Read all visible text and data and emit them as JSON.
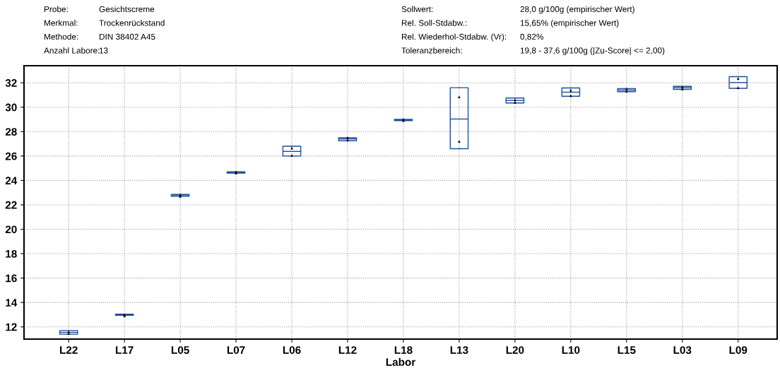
{
  "chart_data": {
    "type": "box",
    "xlabel": "Labor",
    "categories": [
      "L22",
      "L17",
      "L05",
      "L07",
      "L06",
      "L12",
      "L18",
      "L13",
      "L20",
      "L10",
      "L15",
      "L03",
      "L09"
    ],
    "boxes": [
      {
        "low": 11.4,
        "q1": 11.4,
        "median": 11.55,
        "q3": 11.7,
        "high": 11.7
      },
      {
        "low": 12.95,
        "q1": 12.95,
        "median": 13.0,
        "q3": 13.05,
        "high": 13.05
      },
      {
        "low": 22.7,
        "q1": 22.7,
        "median": 22.75,
        "q3": 22.85,
        "high": 22.85
      },
      {
        "low": 24.6,
        "q1": 24.6,
        "median": 24.65,
        "q3": 24.7,
        "high": 24.7
      },
      {
        "low": 26.0,
        "q1": 26.0,
        "median": 26.38,
        "q3": 26.8,
        "high": 26.8
      },
      {
        "low": 27.25,
        "q1": 27.25,
        "median": 27.4,
        "q3": 27.5,
        "high": 27.5
      },
      {
        "low": 28.9,
        "q1": 28.9,
        "median": 28.95,
        "q3": 29.0,
        "high": 29.0
      },
      {
        "low": 26.6,
        "q1": 26.6,
        "median": 29.03,
        "q3": 31.6,
        "high": 31.6
      },
      {
        "low": 30.35,
        "q1": 30.35,
        "median": 30.55,
        "q3": 30.75,
        "high": 30.75
      },
      {
        "low": 30.9,
        "q1": 30.9,
        "median": 31.23,
        "q3": 31.58,
        "high": 31.58
      },
      {
        "low": 31.27,
        "q1": 31.27,
        "median": 31.4,
        "q3": 31.52,
        "high": 31.52
      },
      {
        "low": 31.46,
        "q1": 31.46,
        "median": 31.6,
        "q3": 31.71,
        "high": 31.71
      },
      {
        "low": 31.55,
        "q1": 31.55,
        "median": 32.02,
        "q3": 32.5,
        "high": 32.5
      }
    ],
    "color": "#1f4e9c",
    "series": [
      {
        "type": "scatter",
        "color": "#000000",
        "marker": "triangle",
        "x": [
          "L22",
          "L22",
          "L17",
          "L17",
          "L05",
          "L05",
          "L07",
          "L07",
          "L06",
          "L06",
          "L12",
          "L12",
          "L18",
          "L18",
          "L13",
          "L13",
          "L20",
          "L20",
          "L10",
          "L10",
          "L15",
          "L15",
          "L03",
          "L03",
          "L09",
          "L09"
        ],
        "values": [
          11.45,
          11.6,
          12.9,
          13.0,
          22.7,
          22.8,
          24.6,
          24.7,
          26.05,
          26.65,
          27.3,
          27.5,
          28.9,
          29.0,
          27.2,
          30.85,
          30.4,
          30.6,
          30.95,
          31.4,
          31.3,
          31.5,
          31.5,
          31.65,
          31.6,
          32.35
        ]
      }
    ],
    "ylim": [
      11.0,
      33.4
    ],
    "yticks": [
      12,
      14,
      16,
      18,
      20,
      22,
      24,
      26,
      28,
      30,
      32
    ],
    "grid": true,
    "line_style": "dotted",
    "annotations": [
      "Probe:",
      "Gesichtscreme",
      "Merkmal:",
      "Trockenrückstand",
      "Methode:",
      "DIN 38402 A45",
      "Anzahl Labore:",
      "13",
      "Sollwert:",
      "28,0 g/100g (empirischer Wert)",
      "Rel. Soll-Stdabw.:",
      "15,65% (empirischer Wert)",
      "Rel. Wiederhol-Stdabw. (Vr):",
      "0,82%",
      "Toleranzbereich:",
      "19,8 - 37,6 g/100g (|Zu-Score| <= 2,00)"
    ]
  }
}
